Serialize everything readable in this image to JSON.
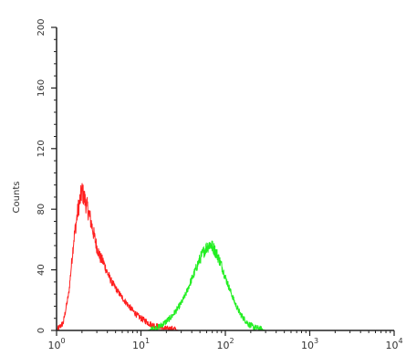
{
  "chart_data": {
    "type": "line",
    "ylabel": "Counts",
    "xscale": "log",
    "xlim": [
      1,
      10000
    ],
    "ylim": [
      0,
      200
    ],
    "y_ticks": [
      0,
      40,
      80,
      120,
      160,
      200
    ],
    "y_tick_labels": [
      "0",
      "40",
      "80",
      "120",
      "160",
      "200"
    ],
    "x_ticks": [
      1,
      10,
      100,
      1000,
      10000
    ],
    "x_tick_labels": [
      {
        "base": "10",
        "exp": "0"
      },
      {
        "base": "10",
        "exp": "1"
      },
      {
        "base": "10",
        "exp": "2"
      },
      {
        "base": "10",
        "exp": "3"
      },
      {
        "base": "10",
        "exp": "4"
      }
    ],
    "grid": false,
    "series": [
      {
        "color": "#ff2020",
        "x": [
          1.0,
          1.2,
          1.4,
          1.6,
          1.8,
          2.0,
          2.2,
          2.4,
          2.6,
          2.8,
          3.0,
          3.3,
          3.6,
          4.0,
          4.5,
          5.0,
          5.6,
          6.3,
          7.0,
          8.0,
          9.0,
          10.0,
          11.5,
          13.0,
          15.0,
          17.0,
          20.0,
          24.0,
          28.0,
          35.0
        ],
        "y": [
          0,
          5,
          25,
          60,
          80,
          92,
          85,
          78,
          70,
          62,
          55,
          48,
          45,
          38,
          32,
          28,
          24,
          20,
          17,
          13,
          10,
          8,
          6,
          4,
          3,
          2,
          1,
          1,
          0,
          0
        ]
      },
      {
        "color": "#22ee22",
        "x": [
          12,
          14,
          16,
          18,
          20,
          23,
          26,
          30,
          34,
          38,
          43,
          48,
          54,
          60,
          66,
          73,
          80,
          90,
          100,
          115,
          130,
          150,
          170,
          190,
          220,
          260,
          300,
          350
        ],
        "y": [
          0,
          1,
          2,
          4,
          6,
          9,
          13,
          18,
          24,
          31,
          38,
          45,
          51,
          55,
          57,
          54,
          50,
          43,
          35,
          26,
          18,
          11,
          7,
          4,
          2,
          1,
          0,
          0
        ]
      }
    ]
  }
}
